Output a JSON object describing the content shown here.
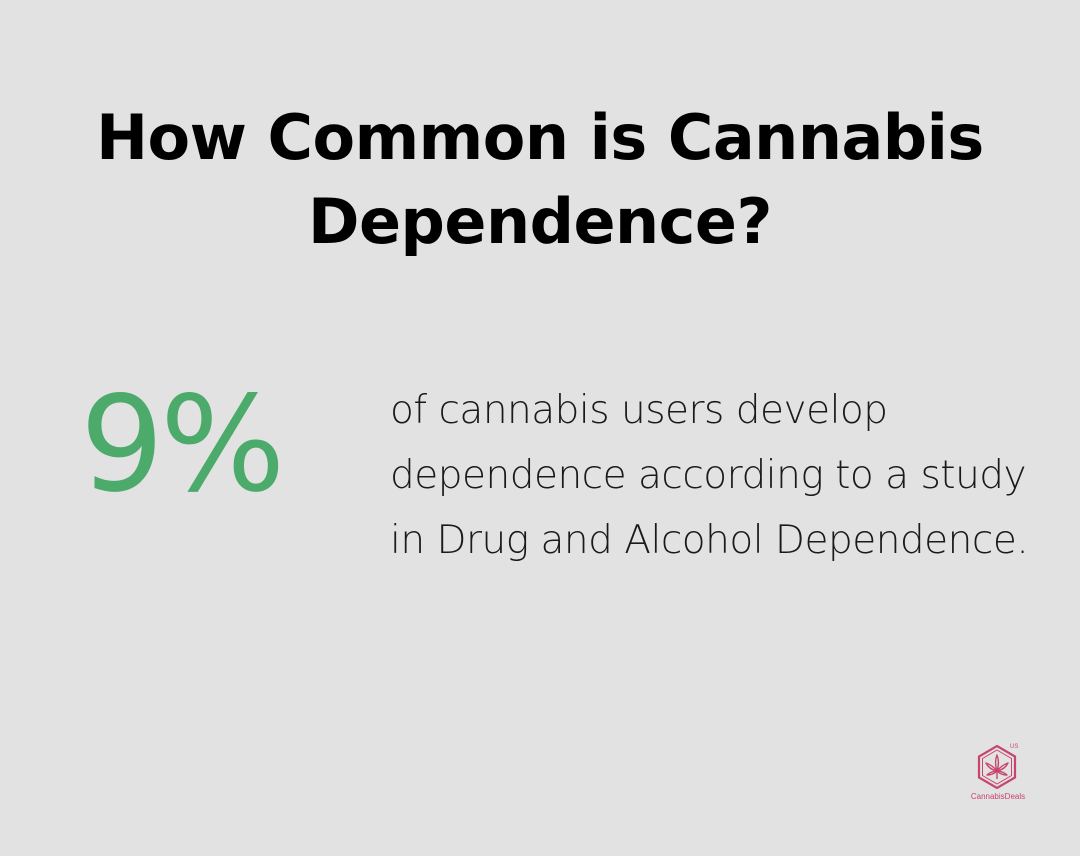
{
  "title": "How Common is Cannabis Dependence?",
  "stat": {
    "value": "9%",
    "description": "of cannabis users develop dependence according to a study in Drug and Alcohol Dependence."
  },
  "logo": {
    "name": "CannabisDeals",
    "badge": "US",
    "icon": "cannabis-leaf-hexagon-icon"
  },
  "colors": {
    "background": "#e1e2e1",
    "accent": "#4caa6b",
    "brand": "#c8456f"
  }
}
